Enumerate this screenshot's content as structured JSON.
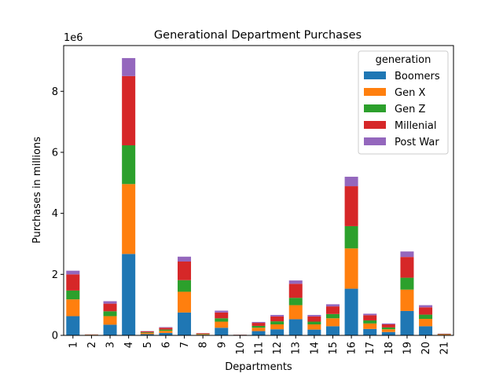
{
  "colors": {
    "Boomers": "#1f77b4",
    "Gen X": "#ff7f0e",
    "Gen Z": "#2ca02c",
    "Millenial": "#d62728",
    "Post War": "#9467bd"
  },
  "chart_data": {
    "type": "bar",
    "stacked": true,
    "title": "Generational Department Purchases",
    "xlabel": "Departments",
    "ylabel": "Purchases in millions",
    "y_offset_text": "1e6",
    "ylim": [
      0,
      9500000
    ],
    "yticks": [
      0,
      2000000,
      4000000,
      6000000,
      8000000
    ],
    "ytick_labels": [
      "0",
      "2",
      "4",
      "6",
      "8"
    ],
    "categories": [
      "1",
      "2",
      "3",
      "4",
      "5",
      "6",
      "7",
      "8",
      "9",
      "10",
      "11",
      "12",
      "13",
      "14",
      "15",
      "16",
      "17",
      "18",
      "19",
      "20",
      "21"
    ],
    "legend_title": "generation",
    "legend_position": "top-right",
    "grid": false,
    "series": [
      {
        "name": "Boomers",
        "values": [
          630000,
          5000,
          350000,
          2670000,
          40000,
          80000,
          750000,
          20000,
          250000,
          5000,
          140000,
          200000,
          530000,
          190000,
          300000,
          1530000,
          210000,
          110000,
          800000,
          300000,
          15000
        ]
      },
      {
        "name": "Gen X",
        "values": [
          550000,
          15000,
          280000,
          2290000,
          40000,
          70000,
          680000,
          20000,
          200000,
          8000,
          110000,
          160000,
          460000,
          170000,
          260000,
          1320000,
          180000,
          90000,
          700000,
          240000,
          15000
        ]
      },
      {
        "name": "Gen Z",
        "values": [
          290000,
          3000,
          160000,
          1270000,
          20000,
          40000,
          380000,
          10000,
          110000,
          4000,
          60000,
          100000,
          240000,
          90000,
          140000,
          730000,
          100000,
          60000,
          390000,
          140000,
          8000
        ]
      },
      {
        "name": "Millenial",
        "values": [
          530000,
          7000,
          250000,
          2270000,
          30000,
          60000,
          610000,
          20000,
          190000,
          6000,
          100000,
          160000,
          460000,
          170000,
          250000,
          1310000,
          170000,
          100000,
          680000,
          240000,
          15000
        ]
      },
      {
        "name": "Post War",
        "values": [
          120000,
          2000,
          80000,
          590000,
          10000,
          20000,
          160000,
          5000,
          60000,
          2000,
          30000,
          50000,
          110000,
          50000,
          70000,
          310000,
          50000,
          30000,
          180000,
          70000,
          4000
        ]
      }
    ]
  }
}
